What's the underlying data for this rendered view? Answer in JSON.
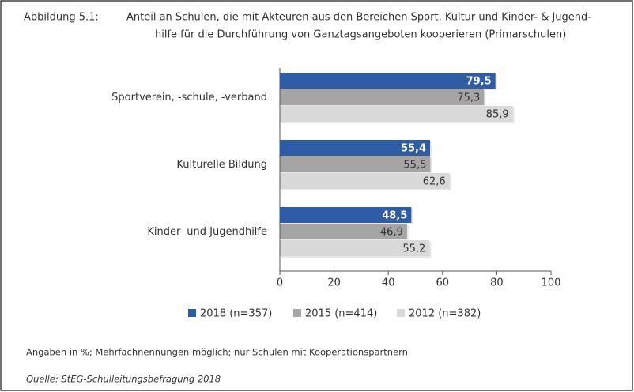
{
  "chart_data": {
    "type": "hbar",
    "figure_label": "Abbildung 5.1:",
    "title_lines": [
      "Anteil an Schulen, die mit Akteuren aus den Bereichen Sport, Kultur und Kinder- & Jugend-",
      "hilfe für die Durchführung von Ganztagsangeboten kooperieren (Primarschulen)"
    ],
    "categories": [
      "Sportverein, -schule, -verband",
      "Kulturelle Bildung",
      "Kinder- und Jugendhilfe"
    ],
    "series": [
      {
        "name": "2018 (n=357)",
        "color": "#2e5ca6",
        "label_color": "#ffffff",
        "values": [
          79.5,
          55.4,
          48.5
        ],
        "value_labels": [
          "79,5",
          "55,4",
          "48,5"
        ]
      },
      {
        "name": "2015 (n=414)",
        "color": "#a5a5a5",
        "label_color": "#333333",
        "values": [
          75.3,
          55.5,
          46.9
        ],
        "value_labels": [
          "75,3",
          "55,5",
          "46,9"
        ]
      },
      {
        "name": "2012 (n=382)",
        "color": "#d9d9d9",
        "label_color": "#333333",
        "values": [
          85.9,
          62.6,
          55.2
        ],
        "value_labels": [
          "85,9",
          "62,6",
          "55,2"
        ]
      }
    ],
    "xlim": [
      0,
      100
    ],
    "xticks": [
      0,
      20,
      40,
      60,
      80,
      100
    ],
    "note": "Angaben in %; Mehrfachnennungen möglich; nur Schulen mit Kooperationspartnern",
    "source": "Quelle: StEG-Schulleitungsbefragung 2018"
  }
}
